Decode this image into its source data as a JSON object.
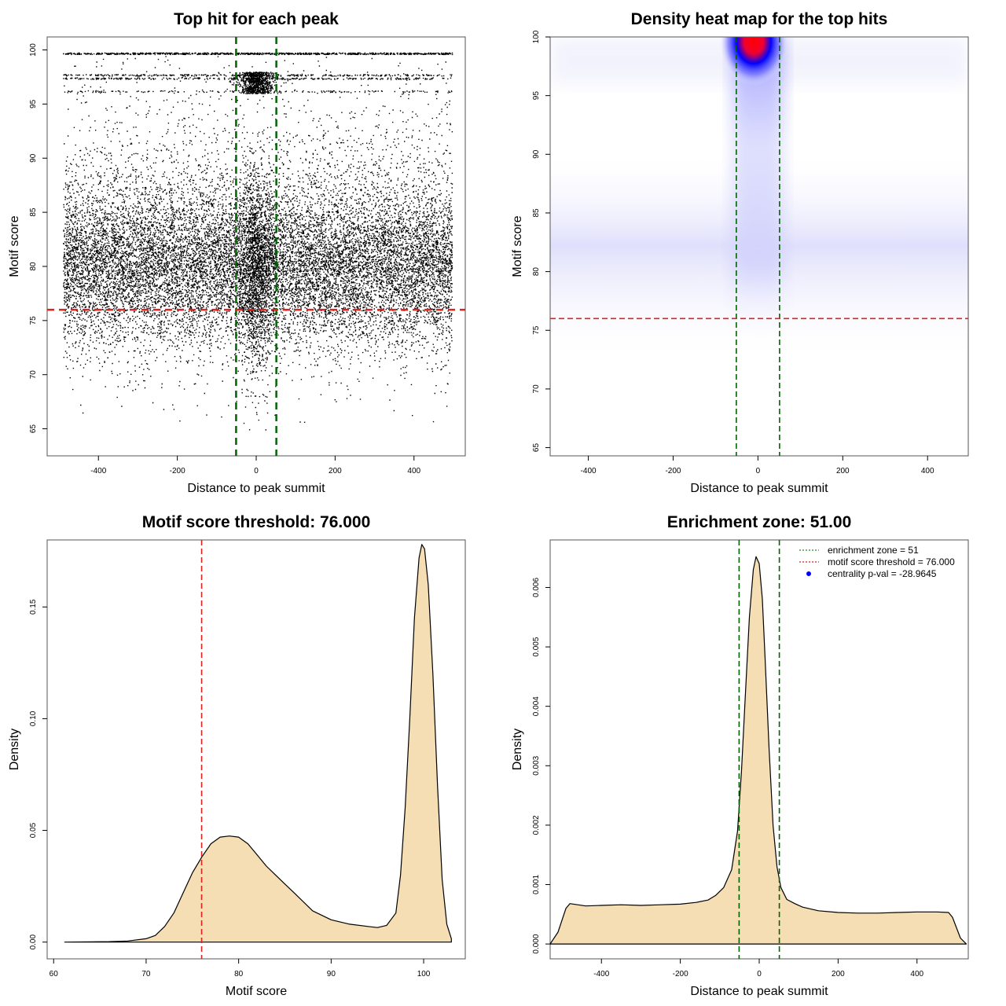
{
  "chart_data": [
    {
      "type": "scatter",
      "title": "Top hit for each peak",
      "xlabel": "Distance to peak summit",
      "ylabel": "Motif score",
      "xlim": [
        -530,
        530
      ],
      "ylim": [
        62.5,
        101.2
      ],
      "xticks": [
        "-400",
        "-200",
        "0",
        "200",
        "400"
      ],
      "yticks": [
        "65",
        "70",
        "75",
        "80",
        "85",
        "90",
        "95",
        "100"
      ],
      "hlines": [
        {
          "y": 76,
          "color": "#dd2222",
          "style": "dashed"
        }
      ],
      "vlines": [
        {
          "x": -51,
          "color": "#006400",
          "style": "dashed"
        },
        {
          "x": 51,
          "color": "#006400",
          "style": "dashed"
        }
      ],
      "point_color": "#000000",
      "distribution": {
        "x_range": [
          -490,
          496
        ],
        "score_bands": [
          99.7,
          97.7,
          97.4,
          96.2
        ],
        "bulk_mean": 79.5,
        "bulk_sd": 3.6,
        "min_score": 65.6,
        "central_cluster": {
          "center": 0,
          "sd": 22
        }
      }
    },
    {
      "type": "heatmap",
      "title": "Density heat map for the top hits",
      "xlabel": "Distance to peak summit",
      "ylabel": "Motif score",
      "xlim": [
        -490,
        496
      ],
      "ylim": [
        64.3,
        100
      ],
      "xticks": [
        "-400",
        "-200",
        "0",
        "200",
        "400"
      ],
      "yticks": [
        "65",
        "70",
        "75",
        "80",
        "85",
        "90",
        "95",
        "100"
      ],
      "hlines": [
        {
          "y": 76,
          "color": "#dd2222",
          "style": "dashed"
        }
      ],
      "vlines": [
        {
          "x": -51,
          "color": "#006400",
          "style": "dashed"
        },
        {
          "x": 51,
          "color": "#006400",
          "style": "dashed"
        }
      ],
      "color_scale": [
        "#ffffff",
        "#0000ff",
        "#ff0000"
      ],
      "hotspot": {
        "x": -10,
        "y": 99.6
      },
      "bulk_band": {
        "y_center": 79.5,
        "y_sd": 3.6
      }
    },
    {
      "type": "area",
      "title": "Motif score threshold: 76.000",
      "xlabel": "Motif score",
      "ylabel": "Density",
      "xlim": [
        59.3,
        104.5
      ],
      "ylim": [
        -0.0075,
        0.18
      ],
      "xticks": [
        "60",
        "70",
        "80",
        "90",
        "100"
      ],
      "yticks": [
        "0.00",
        "0.05",
        "0.10",
        "0.15"
      ],
      "fill": "#f5deb3",
      "vlines": [
        {
          "x": 76,
          "color": "#dd2222",
          "style": "dashed"
        }
      ],
      "x": [
        61.2,
        66,
        68,
        70,
        71,
        72,
        73,
        74,
        75,
        76,
        77,
        78,
        79,
        80,
        81,
        82,
        83,
        84,
        85,
        86,
        88,
        90,
        92,
        94,
        95,
        96,
        97,
        97.5,
        98,
        98.5,
        99,
        99.5,
        99.8,
        100.1,
        100.5,
        101,
        101.5,
        102,
        102.5,
        103
      ],
      "density": [
        0.0,
        0.0002,
        0.0005,
        0.0015,
        0.003,
        0.007,
        0.013,
        0.022,
        0.031,
        0.038,
        0.044,
        0.047,
        0.0475,
        0.047,
        0.044,
        0.039,
        0.034,
        0.03,
        0.026,
        0.022,
        0.014,
        0.01,
        0.008,
        0.007,
        0.0065,
        0.0075,
        0.013,
        0.03,
        0.06,
        0.1,
        0.145,
        0.172,
        0.178,
        0.176,
        0.16,
        0.12,
        0.07,
        0.028,
        0.008,
        0.0015
      ]
    },
    {
      "type": "area",
      "title": "Enrichment zone: 51.00",
      "xlabel": "Distance to peak summit",
      "ylabel": "Density",
      "xlim": [
        -530,
        530
      ],
      "ylim": [
        -0.00025,
        0.0068
      ],
      "xticks": [
        "-400",
        "-200",
        "0",
        "200",
        "400"
      ],
      "yticks": [
        "0.000",
        "0.001",
        "0.002",
        "0.003",
        "0.004",
        "0.005",
        "0.006"
      ],
      "fill": "#f5deb3",
      "vlines": [
        {
          "x": -51,
          "color": "#006400",
          "style": "dashed"
        },
        {
          "x": 51,
          "color": "#006400",
          "style": "dashed"
        }
      ],
      "x": [
        -530,
        -510,
        -490,
        -480,
        -460,
        -440,
        -400,
        -350,
        -300,
        -250,
        -200,
        -160,
        -130,
        -110,
        -90,
        -70,
        -55,
        -45,
        -35,
        -25,
        -15,
        -8,
        0,
        8,
        15,
        25,
        35,
        45,
        55,
        70,
        90,
        110,
        150,
        200,
        250,
        300,
        350,
        400,
        450,
        480,
        490,
        510,
        525
      ],
      "density": [
        0.0,
        0.0002,
        0.0006,
        0.00068,
        0.00066,
        0.00064,
        0.00065,
        0.00066,
        0.00065,
        0.00066,
        0.00067,
        0.0007,
        0.00074,
        0.00082,
        0.00095,
        0.00125,
        0.0019,
        0.0029,
        0.0042,
        0.0055,
        0.0063,
        0.00652,
        0.0064,
        0.0058,
        0.0048,
        0.0033,
        0.002,
        0.0013,
        0.00095,
        0.00075,
        0.00068,
        0.00062,
        0.00056,
        0.00053,
        0.00052,
        0.00052,
        0.00053,
        0.00054,
        0.00054,
        0.00053,
        0.00045,
        0.0001,
        0.0
      ],
      "legend": {
        "placement": "top-right",
        "entries": [
          {
            "label": "enrichment zone = 51",
            "color": "#228b22",
            "symbol": "dotted-line"
          },
          {
            "label": "motif score threshold = 76.000",
            "color": "#dd2222",
            "symbol": "dotted-line"
          },
          {
            "label": "centrality p-val = -28.9645",
            "color": "#0000ff",
            "symbol": "point"
          }
        ]
      }
    }
  ]
}
